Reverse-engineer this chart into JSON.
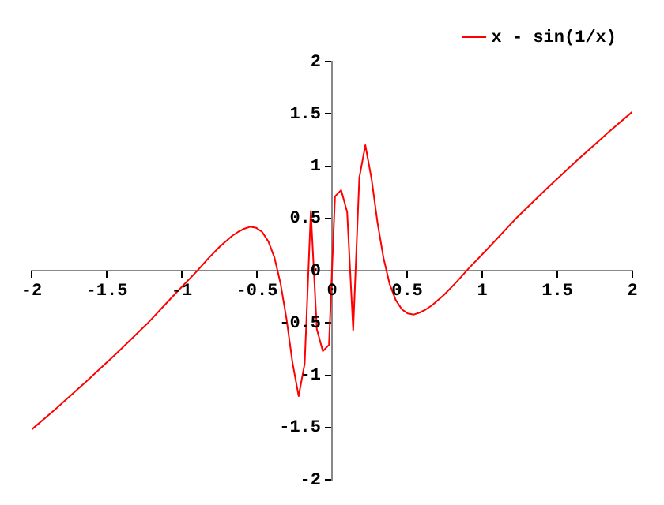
{
  "chart_data": {
    "type": "line",
    "x": [
      -2,
      -1.838,
      -1.636,
      -1.434,
      -1.232,
      -1.03,
      -0.909,
      -0.828,
      -0.747,
      -0.667,
      -0.626,
      -0.586,
      -0.545,
      -0.505,
      -0.465,
      -0.424,
      -0.384,
      -0.343,
      -0.303,
      -0.263,
      -0.222,
      -0.182,
      -0.141,
      -0.101,
      -0.061,
      -0.02,
      0.02,
      0.061,
      0.101,
      0.141,
      0.182,
      0.222,
      0.263,
      0.303,
      0.343,
      0.384,
      0.424,
      0.465,
      0.505,
      0.545,
      0.586,
      0.626,
      0.667,
      0.747,
      0.828,
      0.909,
      1.03,
      1.232,
      1.434,
      1.636,
      1.838,
      2
    ],
    "series": [
      {
        "name": "x - sin(1/x)",
        "color": "#ff0000",
        "values": [
          -1.52,
          -1.32,
          -1.06,
          -0.79,
          -0.51,
          -0.2,
          -0.02,
          0.11,
          0.23,
          0.33,
          0.37,
          0.4,
          0.42,
          0.41,
          0.37,
          0.28,
          0.13,
          -0.12,
          -0.46,
          -0.88,
          -1.2,
          -0.89,
          0.57,
          -0.56,
          -0.77,
          -0.71,
          0.71,
          0.77,
          0.56,
          -0.57,
          0.89,
          1.2,
          0.88,
          0.46,
          0.12,
          -0.13,
          -0.28,
          -0.37,
          -0.41,
          -0.42,
          -0.4,
          -0.37,
          -0.33,
          -0.23,
          -0.11,
          0.02,
          0.2,
          0.51,
          0.79,
          1.06,
          1.32,
          1.52
        ]
      }
    ],
    "xlim": [
      -2,
      2
    ],
    "xticks": [
      -2,
      -1.5,
      -1,
      -0.5,
      0,
      0.5,
      1,
      1.5,
      2
    ],
    "ylim": [
      -2,
      2
    ],
    "yticks": [
      -2,
      -1.5,
      -1,
      -0.5,
      0,
      0.5,
      1,
      1.5,
      2
    ],
    "legend": "top right",
    "grid": false,
    "marker": "none",
    "line_style": "solid"
  }
}
